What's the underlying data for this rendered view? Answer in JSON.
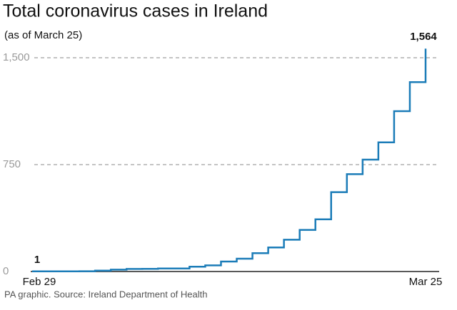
{
  "chart_data": {
    "type": "line",
    "step": true,
    "title": "Total coronavirus cases in Ireland",
    "subtitle": "(as of March 25)",
    "source": "PA graphic. Source: Ireland Department of Health",
    "categories": [
      "Feb 29",
      null,
      null,
      null,
      null,
      null,
      null,
      null,
      null,
      null,
      null,
      null,
      null,
      null,
      null,
      null,
      null,
      null,
      null,
      null,
      null,
      null,
      null,
      null,
      null,
      "Mar 25"
    ],
    "series": [
      {
        "name": "Total cases",
        "color": "#1b7cb8",
        "values": [
          1,
          1,
          1,
          2,
          6,
          13,
          18,
          19,
          21,
          21,
          34,
          43,
          70,
          90,
          129,
          169,
          223,
          292,
          366,
          557,
          683,
          785,
          906,
          1125,
          1329,
          1564
        ],
        "value_labels": [
          "1",
          null,
          null,
          null,
          null,
          null,
          null,
          null,
          null,
          null,
          null,
          null,
          null,
          null,
          null,
          null,
          null,
          null,
          null,
          null,
          null,
          null,
          null,
          null,
          null,
          "1,564"
        ]
      }
    ],
    "ylim": [
      0,
      1560
    ],
    "yticks": [
      0,
      750,
      {
        "value": 1500,
        "label": "1,500"
      }
    ],
    "grid": true
  }
}
